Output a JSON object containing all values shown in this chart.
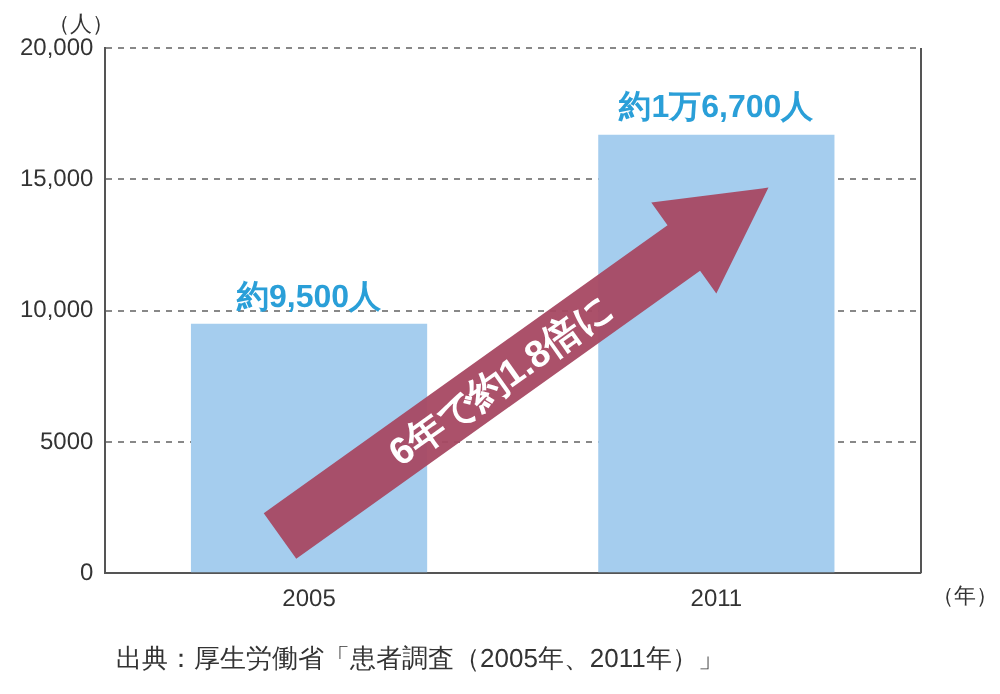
{
  "chart_data": {
    "type": "bar",
    "ylabel": "（人）",
    "xlabel": "（年）",
    "categories": [
      "2005",
      "2011"
    ],
    "values": [
      9500,
      16700
    ],
    "value_labels": [
      "約9,500人",
      "約1万6,700人"
    ],
    "color": "#a5cdee",
    "ylim": [
      0,
      20000
    ],
    "yticks": [
      0,
      5000,
      {
        "value": 10000,
        "label": "10,000"
      },
      {
        "value": 15000,
        "label": "15,000"
      },
      {
        "value": 20000,
        "label": "20,000"
      }
    ],
    "grid": "y",
    "annotations": [
      "6年で約1.8倍に",
      "出典：厚生労働省「患者調査（2005年、2011年）」"
    ]
  }
}
